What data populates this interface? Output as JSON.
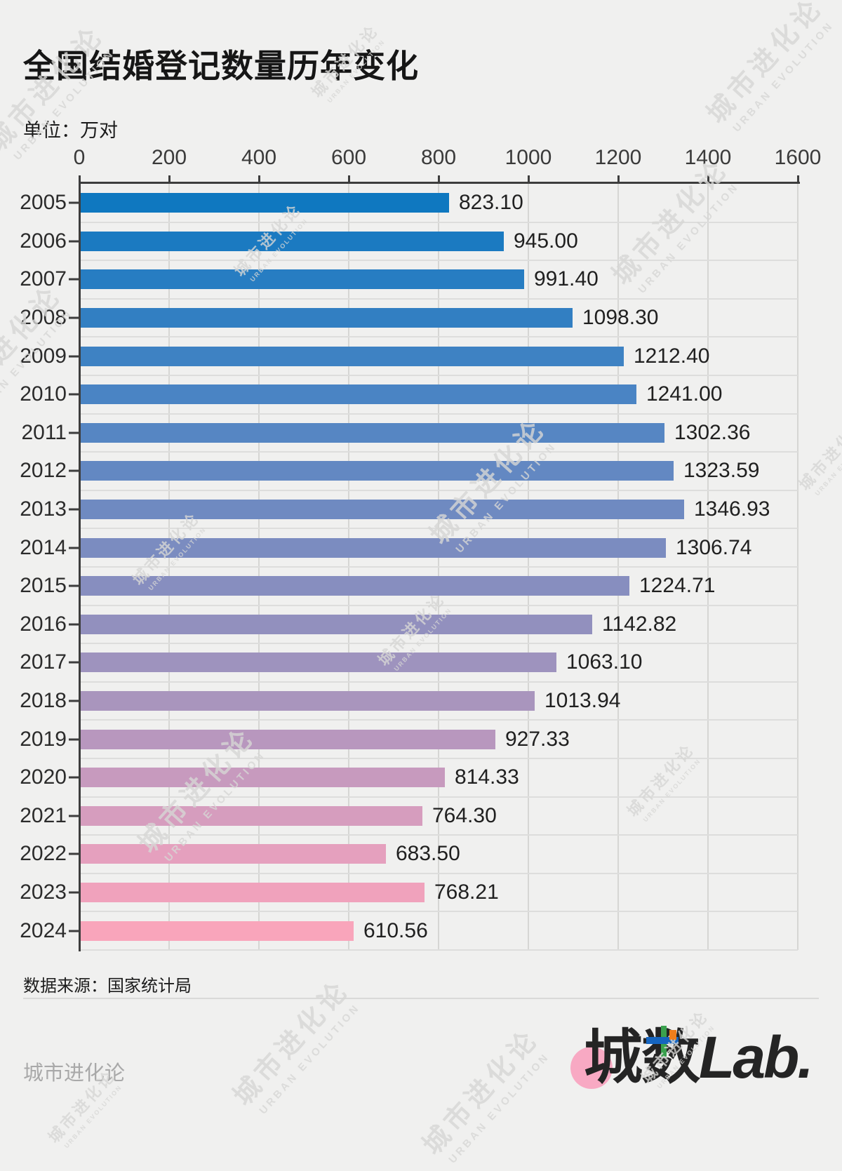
{
  "header": {
    "title": "全国结婚登记数量历年变化",
    "unit_label": "单位：万对"
  },
  "chart_data": {
    "type": "bar",
    "orientation": "horizontal",
    "title": "全国结婚登记数量历年变化",
    "unit": "万对",
    "categories": [
      "2005",
      "2006",
      "2007",
      "2008",
      "2009",
      "2010",
      "2011",
      "2012",
      "2013",
      "2014",
      "2015",
      "2016",
      "2017",
      "2018",
      "2019",
      "2020",
      "2021",
      "2022",
      "2023",
      "2024"
    ],
    "values": [
      823.1,
      945.0,
      991.4,
      1098.3,
      1212.4,
      1241.0,
      1302.36,
      1323.59,
      1346.93,
      1306.74,
      1224.71,
      1142.82,
      1063.1,
      1013.94,
      927.33,
      814.33,
      764.3,
      683.5,
      768.21,
      610.56
    ],
    "value_labels": [
      "823.10",
      "945.00",
      "991.40",
      "1098.30",
      "1212.40",
      "1241.00",
      "1302.36",
      "1323.59",
      "1346.93",
      "1306.74",
      "1224.71",
      "1142.82",
      "1063.10",
      "1013.94",
      "927.33",
      "814.33",
      "764.30",
      "683.50",
      "768.21",
      "610.56"
    ],
    "bar_colors": [
      "#0F78C0",
      "#1B7AC1",
      "#277DC2",
      "#327FC2",
      "#3E82C3",
      "#4A84C4",
      "#5686C3",
      "#6388C2",
      "#6F8AC1",
      "#7B8CC0",
      "#878EBF",
      "#9290BE",
      "#9E93BE",
      "#A995BD",
      "#B897BE",
      "#C79ABE",
      "#D69DBE",
      "#E5A0BE",
      "#F0A2BC",
      "#F9A5BB"
    ],
    "xlim": [
      0,
      1600
    ],
    "x_ticks": [
      "0",
      "200",
      "400",
      "600",
      "800",
      "1000",
      "1200",
      "1400",
      "1600"
    ],
    "grid": true,
    "legend": "none"
  },
  "footer": {
    "source": "数据来源：国家统计局",
    "brand_left": "城市进化论",
    "logo": {
      "cn": "城数",
      "latin": "Lab.",
      "text_color": "#242424",
      "circle_color": "#F8A9C3",
      "accent_green": "#3AA14E",
      "accent_blue": "#1565C0",
      "accent_orange": "#F07E1B"
    }
  },
  "watermark": {
    "line1": "城市进化论",
    "line2": "URBAN EVOLUTION",
    "color": "#d7d7d5",
    "positions": [
      [
        70,
        130,
        "lg"
      ],
      [
        495,
        90,
        "sm"
      ],
      [
        1095,
        90,
        "lg"
      ],
      [
        385,
        345,
        "sm"
      ],
      [
        960,
        320,
        "lg"
      ],
      [
        10,
        500,
        "lg"
      ],
      [
        700,
        690,
        "lg"
      ],
      [
        1190,
        650,
        "sm"
      ],
      [
        240,
        785,
        "sm"
      ],
      [
        590,
        900,
        "sm"
      ],
      [
        285,
        1130,
        "lg"
      ],
      [
        945,
        1115,
        "sm"
      ],
      [
        420,
        1490,
        "lg"
      ],
      [
        965,
        1495,
        "sm"
      ],
      [
        690,
        1560,
        "lg"
      ],
      [
        120,
        1580,
        "sm"
      ]
    ]
  }
}
